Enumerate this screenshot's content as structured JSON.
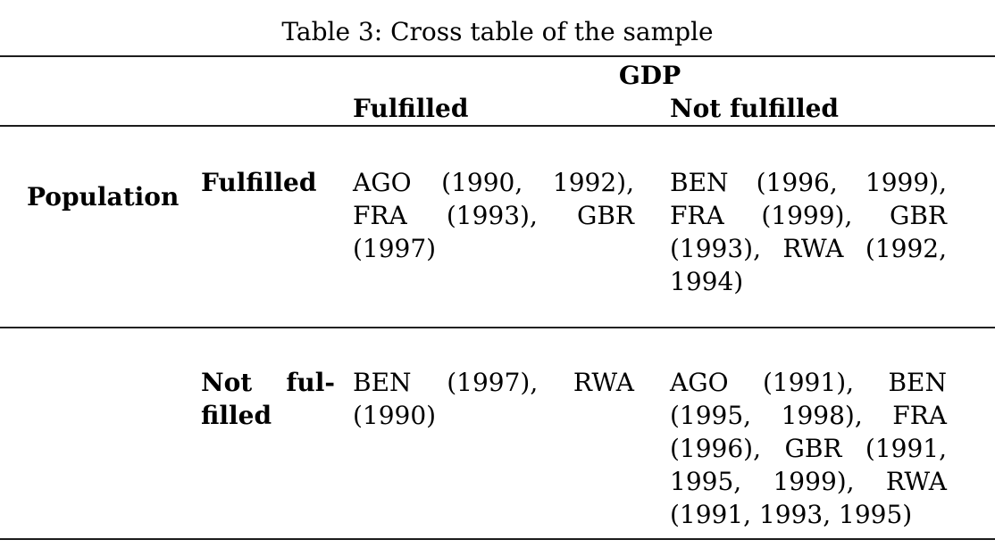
{
  "colors": {
    "background": "#ffffff",
    "text": "#000000",
    "rule": "#1c1c1c"
  },
  "table": {
    "caption": "Table 3: Cross table of the sample",
    "column_group_header": "GDP",
    "row_group_header": "Population",
    "column_headers": [
      "Fulfilled",
      "Not fulfilled"
    ],
    "rows": [
      {
        "label": "Fulfilled",
        "cells": [
          "AGO (1990, 1992), FRA (1993), GBR (1997)",
          "BEN (1996, 1999), FRA (1999), GBR (1993), RWA (1992, 1994)"
        ]
      },
      {
        "label": "Not ful- filled",
        "cells": [
          "BEN (1997), RWA (1990)",
          "AGO (1991), BEN (1995, 1998), FRA (1996), GBR (1991, 1995, 1999), RWA (1991, 1993, 1995)"
        ]
      }
    ]
  }
}
